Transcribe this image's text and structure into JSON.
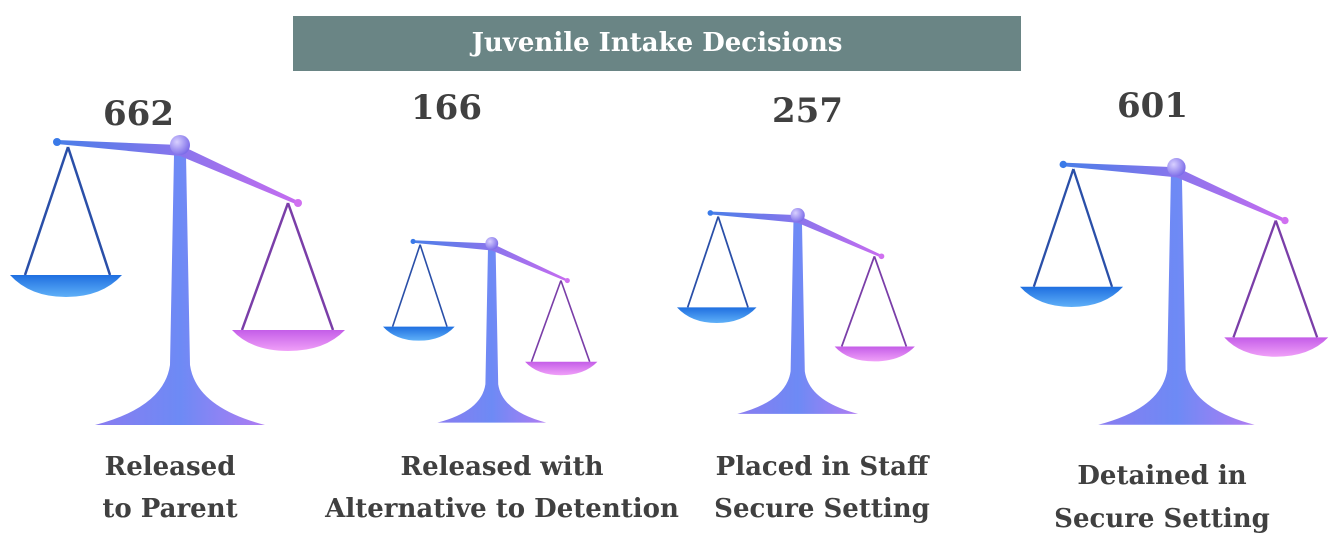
{
  "header": {
    "title": "Juvenile Intake Decisions"
  },
  "items": [
    {
      "value": 662,
      "label": [
        "Released",
        "to Parent"
      ]
    },
    {
      "value": 166,
      "label": [
        "Released with",
        "Alternative to Detention"
      ]
    },
    {
      "value": 257,
      "label": [
        "Placed in Staff",
        "Secure Setting"
      ]
    },
    {
      "value": 601,
      "label": [
        "Detained in",
        "Secure Setting"
      ]
    }
  ]
}
